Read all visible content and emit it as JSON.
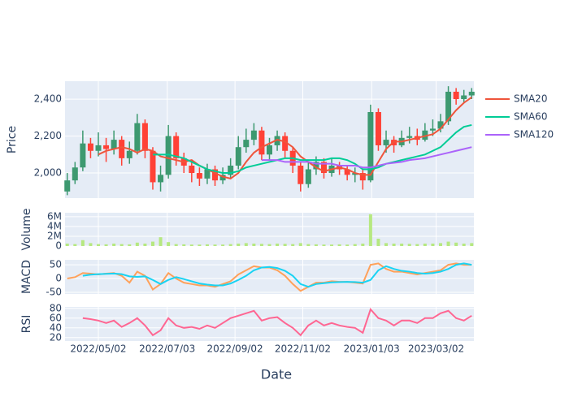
{
  "chart_data": {
    "type": "candlestick",
    "xlabel": "Date",
    "background": "#e5ecf6",
    "grid": true,
    "x": [
      "2022/04/04",
      "2022/04/11",
      "2022/04/18",
      "2022/04/25",
      "2022/05/02",
      "2022/05/09",
      "2022/05/16",
      "2022/05/23",
      "2022/05/30",
      "2022/06/06",
      "2022/06/13",
      "2022/06/20",
      "2022/06/27",
      "2022/07/04",
      "2022/07/11",
      "2022/07/18",
      "2022/07/25",
      "2022/08/01",
      "2022/08/08",
      "2022/08/15",
      "2022/08/22",
      "2022/08/29",
      "2022/09/05",
      "2022/09/12",
      "2022/09/19",
      "2022/09/26",
      "2022/10/03",
      "2022/10/10",
      "2022/10/17",
      "2022/10/24",
      "2022/10/31",
      "2022/11/07",
      "2022/11/14",
      "2022/11/21",
      "2022/11/28",
      "2022/12/05",
      "2022/12/12",
      "2022/12/19",
      "2022/12/26",
      "2023/01/02",
      "2023/01/09",
      "2023/01/16",
      "2023/01/23",
      "2023/01/30",
      "2023/02/06",
      "2023/02/13",
      "2023/02/20",
      "2023/02/27",
      "2023/03/06",
      "2023/03/13",
      "2023/03/20",
      "2023/03/27",
      "2023/04/03"
    ],
    "xlim": [
      "2022/04/02",
      "2023/04/05"
    ],
    "xticks": [
      "2022/05/02",
      "2022/07/03",
      "2022/09/02",
      "2022/11/02",
      "2023/01/03",
      "2023/03/02"
    ],
    "panels": [
      {
        "type": "candlestick",
        "ylabel": "Price",
        "ylim": [
          1864,
          2497
        ],
        "yticks": [
          {
            "value": 2000,
            "label": "2,000"
          },
          {
            "value": 2200,
            "label": "2,200"
          },
          {
            "value": 2400,
            "label": "2,400"
          }
        ],
        "increasing_color": "#3d9970",
        "decreasing_color": "#ff4136",
        "open": [
          1900,
          1960,
          2030,
          2160,
          2120,
          2150,
          2130,
          2180,
          2080,
          2120,
          2270,
          2120,
          1950,
          1990,
          2200,
          2080,
          2040,
          2000,
          1970,
          2020,
          1960,
          1990,
          2040,
          2140,
          2180,
          2230,
          2100,
          2150,
          2200,
          2120,
          2040,
          1940,
          2020,
          2060,
          2000,
          2040,
          2020,
          1990,
          2000,
          1960,
          2330,
          2150,
          2180,
          2150,
          2190,
          2200,
          2180,
          2230,
          2240,
          2280,
          2440,
          2400,
          2420
        ],
        "high": [
          2000,
          2060,
          2230,
          2190,
          2220,
          2190,
          2230,
          2200,
          2170,
          2320,
          2290,
          2140,
          2040,
          2260,
          2220,
          2110,
          2070,
          2030,
          2050,
          2040,
          2030,
          2080,
          2200,
          2240,
          2270,
          2250,
          2190,
          2230,
          2220,
          2140,
          2060,
          2060,
          2090,
          2080,
          2080,
          2060,
          2040,
          2030,
          2020,
          2370,
          2350,
          2230,
          2200,
          2230,
          2250,
          2240,
          2270,
          2290,
          2320,
          2470,
          2460,
          2450,
          2460
        ],
        "low": [
          1880,
          1940,
          2010,
          2080,
          2090,
          2060,
          2100,
          2040,
          2050,
          2100,
          2080,
          1910,
          1900,
          1970,
          2040,
          2000,
          1950,
          1930,
          1940,
          1930,
          1940,
          1970,
          2020,
          2110,
          2150,
          2070,
          2070,
          2120,
          2080,
          2000,
          1900,
          1920,
          1990,
          1970,
          1980,
          1990,
          1960,
          1950,
          1910,
          1950,
          2120,
          2110,
          2110,
          2140,
          2160,
          2150,
          2170,
          2200,
          2220,
          2260,
          2370,
          2380,
          2400
        ],
        "close": [
          1960,
          2030,
          2160,
          2120,
          2150,
          2130,
          2180,
          2080,
          2120,
          2270,
          2120,
          1950,
          1990,
          2200,
          2080,
          2040,
          2000,
          1970,
          2020,
          1960,
          1990,
          2040,
          2140,
          2180,
          2230,
          2100,
          2150,
          2200,
          2120,
          2040,
          1940,
          2020,
          2060,
          2000,
          2040,
          2020,
          1990,
          2000,
          1960,
          2330,
          2150,
          2180,
          2150,
          2190,
          2200,
          2180,
          2230,
          2240,
          2280,
          2440,
          2400,
          2420,
          2440
        ],
        "series": [
          {
            "name": "SMA20",
            "color": "#ef553b",
            "values": [
              null,
              null,
              null,
              null,
              2100,
              2120,
              2130,
              2140,
              2130,
              2110,
              2130,
              2120,
              2090,
              2080,
              2070,
              2060,
              2070,
              2040,
              2020,
              2000,
              1980,
              1970,
              2000,
              2060,
              2110,
              2140,
              2160,
              2180,
              2170,
              2140,
              2090,
              2060,
              2030,
              2010,
              2020,
              2030,
              2020,
              2000,
              1990,
              1990,
              2060,
              2130,
              2170,
              2170,
              2180,
              2190,
              2200,
              2210,
              2240,
              2290,
              2340,
              2380,
              2410
            ]
          },
          {
            "name": "SMA60",
            "color": "#00cc96",
            "values": [
              null,
              null,
              null,
              null,
              null,
              null,
              null,
              null,
              null,
              null,
              null,
              2100,
              2100,
              2100,
              2090,
              2080,
              2060,
              2040,
              2020,
              2010,
              2000,
              2000,
              2010,
              2030,
              2040,
              2050,
              2060,
              2070,
              2080,
              2080,
              2070,
              2070,
              2070,
              2070,
              2080,
              2080,
              2070,
              2050,
              2020,
              2020,
              2030,
              2050,
              2060,
              2070,
              2080,
              2090,
              2100,
              2120,
              2140,
              2180,
              2220,
              2250,
              2260
            ]
          },
          {
            "name": "SMA120",
            "color": "#ab63fa",
            "values": [
              null,
              null,
              null,
              null,
              null,
              null,
              null,
              null,
              null,
              null,
              null,
              null,
              null,
              null,
              null,
              null,
              null,
              null,
              null,
              null,
              null,
              null,
              null,
              null,
              null,
              2070,
              2070,
              2070,
              2060,
              2060,
              2060,
              2060,
              2050,
              2050,
              2050,
              2040,
              2040,
              2040,
              2030,
              2030,
              2040,
              2050,
              2055,
              2060,
              2070,
              2075,
              2080,
              2090,
              2100,
              2110,
              2120,
              2130,
              2140
            ]
          }
        ]
      },
      {
        "type": "bar",
        "ylabel": "Volume",
        "ylim": [
          0,
          6800000
        ],
        "color": "#b6e880",
        "yticks": [
          0,
          {
            "value": 2000000,
            "label": "2M"
          },
          {
            "value": 4000000,
            "label": "4M"
          },
          {
            "value": 6000000,
            "label": "6M"
          }
        ],
        "values": [
          500000,
          400000,
          1200000,
          600000,
          400000,
          350000,
          500000,
          400000,
          350000,
          700000,
          500000,
          900000,
          1800000,
          800000,
          400000,
          350000,
          300000,
          300000,
          350000,
          300000,
          300000,
          400000,
          500000,
          600000,
          500000,
          450000,
          400000,
          500000,
          450000,
          400000,
          600000,
          400000,
          350000,
          300000,
          300000,
          350000,
          300000,
          400000,
          500000,
          6500000,
          1500000,
          600000,
          500000,
          500000,
          450000,
          400000,
          500000,
          500000,
          600000,
          900000,
          700000,
          500000,
          600000
        ]
      },
      {
        "type": "line",
        "ylabel": "MACD",
        "ylim": [
          -56,
          68
        ],
        "yticks": [
          -50,
          0,
          50
        ],
        "series": [
          {
            "color": "#ffa15a",
            "values": [
              0,
              5,
              20,
              18,
              15,
              18,
              20,
              10,
              -15,
              25,
              10,
              -40,
              -20,
              20,
              0,
              -15,
              -20,
              -25,
              -25,
              -30,
              -20,
              -10,
              15,
              30,
              45,
              40,
              40,
              30,
              10,
              -20,
              -45,
              -30,
              -15,
              -15,
              -10,
              -12,
              -12,
              -15,
              -18,
              50,
              55,
              35,
              25,
              25,
              20,
              15,
              20,
              25,
              30,
              50,
              55,
              50,
              50
            ]
          },
          {
            "color": "#19d3f3",
            "values": [
              null,
              null,
              10,
              14,
              16,
              17,
              18,
              16,
              8,
              6,
              8,
              -5,
              -20,
              -5,
              5,
              -2,
              -10,
              -18,
              -22,
              -25,
              -25,
              -18,
              -5,
              10,
              30,
              40,
              42,
              38,
              28,
              10,
              -20,
              -30,
              -20,
              -17,
              -14,
              -13,
              -12,
              -13,
              -15,
              -5,
              30,
              45,
              35,
              28,
              25,
              20,
              18,
              20,
              25,
              35,
              50,
              55,
              50
            ]
          }
        ]
      },
      {
        "type": "line",
        "ylabel": "RSI",
        "ylim": [
          13,
          83
        ],
        "yticks": [
          20,
          40,
          60,
          80
        ],
        "series": [
          {
            "color": "#ff6692",
            "values": [
              null,
              null,
              60,
              58,
              55,
              50,
              55,
              42,
              50,
              60,
              45,
              25,
              35,
              60,
              45,
              40,
              42,
              38,
              45,
              40,
              50,
              60,
              65,
              70,
              75,
              55,
              60,
              62,
              50,
              40,
              25,
              45,
              55,
              45,
              50,
              45,
              42,
              40,
              30,
              78,
              60,
              55,
              45,
              55,
              55,
              50,
              60,
              60,
              70,
              75,
              60,
              55,
              65
            ]
          }
        ]
      }
    ]
  }
}
